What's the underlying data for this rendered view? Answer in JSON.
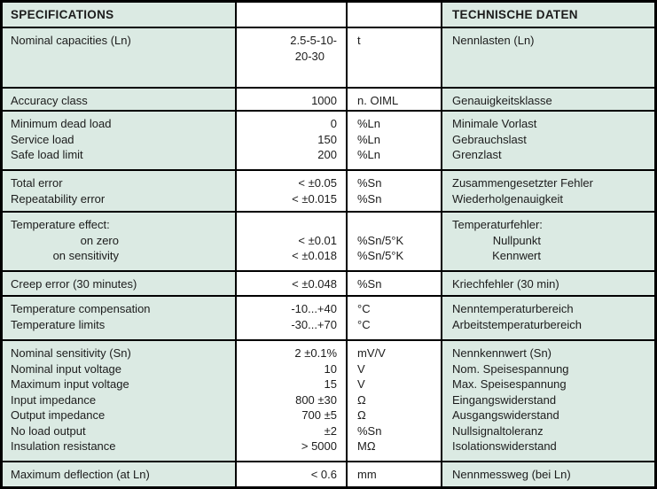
{
  "header": {
    "en": "SPECIFICATIONS",
    "de": "TECHNISCHE DATEN"
  },
  "colors": {
    "label_background": "#dbeae3",
    "value_background": "#ffffff",
    "border": "#000000",
    "text": "#1c1c1c"
  },
  "groups": [
    {
      "en": [
        "Nominal capacities (Ln)"
      ],
      "value": [
        "2.5-5-10-",
        "20-30"
      ],
      "unit": [
        "t"
      ],
      "de": [
        "Nennlasten (Ln)"
      ]
    },
    {
      "en": [
        "Accuracy class"
      ],
      "value": [
        "1000"
      ],
      "unit": [
        "n. OIML"
      ],
      "de": [
        "Genauigkeitsklasse"
      ]
    },
    {
      "en": [
        "Minimum dead load",
        "Service load",
        "Safe load limit"
      ],
      "value": [
        "0",
        "150",
        "200"
      ],
      "unit": [
        "%Ln",
        "%Ln",
        "%Ln"
      ],
      "de": [
        "Minimale Vorlast",
        "Gebrauchslast",
        "Grenzlast"
      ]
    },
    {
      "en": [
        "Total error",
        "Repeatability error"
      ],
      "value": [
        "< ±0.05",
        "< ±0.015"
      ],
      "unit": [
        "%Sn",
        "%Sn"
      ],
      "de": [
        "Zusammengesetzter Fehler",
        "Wiederholgenauigkeit"
      ]
    },
    {
      "en": [
        "Temperature effect:",
        "on zero",
        "on sensitivity"
      ],
      "value": [
        "",
        "< ±0.01",
        "< ±0.018"
      ],
      "unit": [
        "",
        "%Sn/5°K",
        "%Sn/5°K"
      ],
      "de": [
        "Temperaturfehler:",
        "Nullpunkt",
        "Kennwert"
      ]
    },
    {
      "en": [
        "Creep error (30 minutes)"
      ],
      "value": [
        "< ±0.048"
      ],
      "unit": [
        "%Sn"
      ],
      "de": [
        "Kriechfehler (30 min)"
      ]
    },
    {
      "en": [
        "Temperature compensation",
        "Temperature limits"
      ],
      "value": [
        "-10...+40",
        "-30...+70"
      ],
      "unit": [
        "°C",
        "°C"
      ],
      "de": [
        "Nenntemperaturbereich",
        "Arbeitstemperaturbereich"
      ]
    },
    {
      "en": [
        "Nominal sensitivity (Sn)",
        "Nominal input voltage",
        "Maximum input voltage",
        "Input impedance",
        "Output impedance",
        "No load output",
        "Insulation resistance"
      ],
      "value": [
        "2 ±0.1%",
        "10",
        "15",
        "800 ±30",
        "700 ±5",
        "±2",
        "> 5000"
      ],
      "unit": [
        "mV/V",
        "V",
        "V",
        "Ω",
        "Ω",
        "%Sn",
        "MΩ"
      ],
      "de": [
        "Nennkennwert (Sn)",
        "Nom. Speisespannung",
        "Max. Speisespannung",
        "Eingangswiderstand",
        "Ausgangswiderstand",
        "Nullsignaltoleranz",
        "Isolationswiderstand"
      ]
    },
    {
      "en": [
        "Maximum deflection (at Ln)"
      ],
      "value": [
        "< 0.6"
      ],
      "unit": [
        "mm"
      ],
      "de": [
        "Nennmessweg (bei Ln)"
      ]
    }
  ]
}
